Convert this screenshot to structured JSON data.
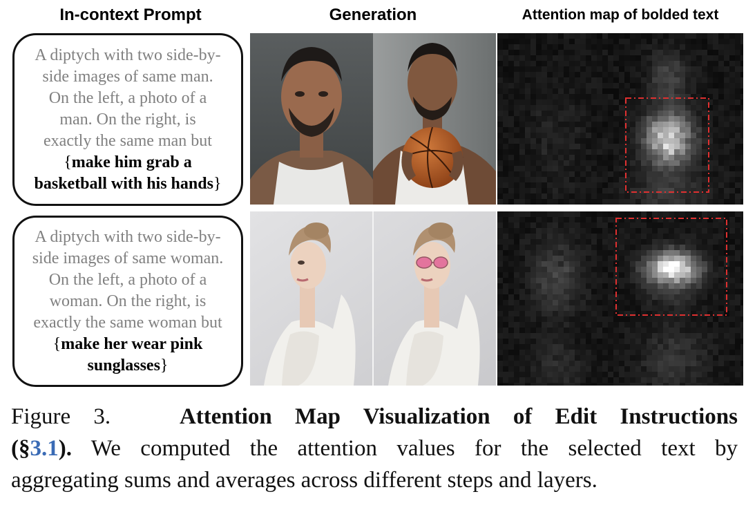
{
  "headers": {
    "prompt": "In-context Prompt",
    "generation": "Generation",
    "attention": "Attention map of bolded text"
  },
  "rows": [
    {
      "prompt_lines": [
        "A diptych with two side-by-",
        "side images of same man.",
        "On the left, a photo of a",
        "man. On the right,  is",
        "exactly the same man but"
      ],
      "bold_lines": [
        "make him grab a",
        "basketball with his hands"
      ]
    },
    {
      "prompt_lines": [
        "A diptych with two side-by-",
        "side images of same woman.",
        "On the left, a photo of a",
        "woman. On the right,  is",
        "exactly the same woman but"
      ],
      "bold_lines": [
        "make her wear pink",
        "sunglasses"
      ]
    }
  ],
  "caption": {
    "label": "Figure 3.",
    "title": "Attention Map Visualization of Edit Instructions",
    "open": "(§",
    "ref": "3.1",
    "close": ").",
    "line2_rest": "We computed the attention values for the selected text by",
    "line3": "aggregating sums and averages across different steps and layers."
  },
  "colors": {
    "prompt_gray": "#808080",
    "ref_blue": "#3a6bb5",
    "box_red": "#e03030"
  }
}
